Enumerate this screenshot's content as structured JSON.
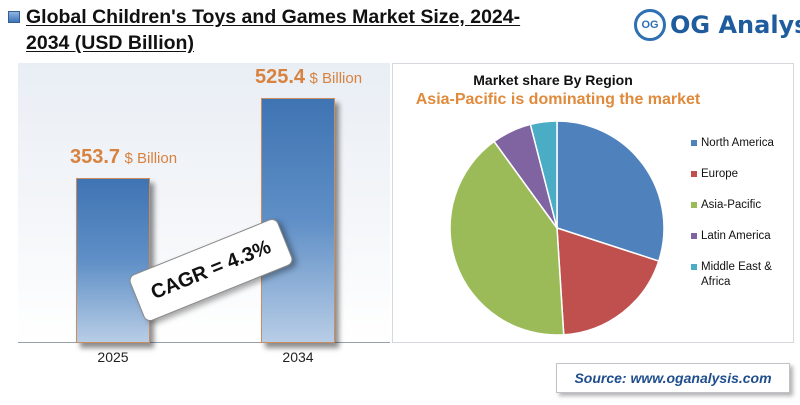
{
  "header": {
    "title": "Global Children's Toys and Games Market Size, 2024-2034 (USD Billion)",
    "logo": {
      "circle_text": "OG",
      "text_main": "OG Analys",
      "text_accent": "i",
      "text_end": "s"
    }
  },
  "colors": {
    "bar": "#4f81bd",
    "value_label": "#d8823f",
    "north_america": "#4f81bd",
    "europe": "#c0504d",
    "asia_pacific": "#9bbb59",
    "latin_america": "#8064a2",
    "middle_east_africa": "#4bacc6"
  },
  "cagr_label": "CAGR = 4.3%",
  "source": "Source: www.oganalysis.com",
  "chart_data": [
    {
      "type": "bar",
      "categories": [
        "2025",
        "2034"
      ],
      "values": [
        353.7,
        525.4
      ],
      "value_labels": [
        {
          "number": "353.7",
          "unit": "$ Billion"
        },
        {
          "number": "525.4",
          "unit": "$ Billion"
        }
      ],
      "ylim": [
        0,
        600
      ]
    },
    {
      "type": "pie",
      "title": "Market share By Region",
      "subtitle": "Asia-Pacific is dominating the market",
      "legend_position": "right",
      "slices": [
        {
          "label": "North America",
          "value": 30,
          "color": "#4f81bd"
        },
        {
          "label": "Europe",
          "value": 19,
          "color": "#c0504d"
        },
        {
          "label": "Asia-Pacific",
          "value": 41,
          "color": "#9bbb59"
        },
        {
          "label": "Latin America",
          "value": 6,
          "color": "#8064a2"
        },
        {
          "label": "Middle East & Africa",
          "value": 4,
          "color": "#4bacc6"
        }
      ]
    }
  ]
}
